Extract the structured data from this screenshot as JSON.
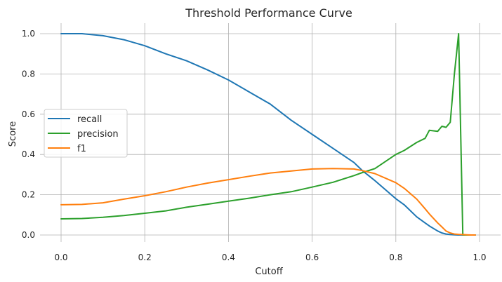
{
  "chart_data": {
    "type": "line",
    "title": "Threshold Performance Curve",
    "xlabel": "Cutoff",
    "ylabel": "Score",
    "xlim": [
      0.0,
      1.0
    ],
    "ylim": [
      0.0,
      1.0
    ],
    "x_ticks": [
      "0.0",
      "0.2",
      "0.4",
      "0.6",
      "0.8",
      "1.0"
    ],
    "y_ticks": [
      "0.0",
      "0.2",
      "0.4",
      "0.6",
      "0.8",
      "1.0"
    ],
    "grid": true,
    "legend_position": "center-left",
    "x": [
      0.0,
      0.05,
      0.1,
      0.15,
      0.2,
      0.25,
      0.3,
      0.35,
      0.4,
      0.45,
      0.5,
      0.55,
      0.6,
      0.65,
      0.7,
      0.72,
      0.75,
      0.8,
      0.82,
      0.85,
      0.87,
      0.88,
      0.9,
      0.91,
      0.92,
      0.93,
      0.94,
      0.95,
      0.96,
      0.97,
      0.98,
      0.99
    ],
    "series": [
      {
        "name": "recall",
        "color": "#1f77b4",
        "values": [
          1.0,
          1.0,
          0.99,
          0.97,
          0.94,
          0.9,
          0.865,
          0.82,
          0.77,
          0.71,
          0.65,
          0.57,
          0.5,
          0.43,
          0.36,
          0.32,
          0.27,
          0.18,
          0.15,
          0.09,
          0.06,
          0.045,
          0.02,
          0.01,
          0.005,
          0.002,
          0.001,
          0.0,
          0.0,
          0.0,
          0.0,
          0.0
        ]
      },
      {
        "name": "precision",
        "color": "#2ca02c",
        "values": [
          0.08,
          0.082,
          0.088,
          0.097,
          0.108,
          0.12,
          0.138,
          0.153,
          0.168,
          0.183,
          0.2,
          0.215,
          0.238,
          0.262,
          0.295,
          0.31,
          0.33,
          0.4,
          0.42,
          0.46,
          0.48,
          0.52,
          0.515,
          0.54,
          0.535,
          0.56,
          0.8,
          1.0,
          0.0,
          0.0,
          0.0,
          0.0
        ]
      },
      {
        "name": "f1",
        "color": "#ff7f0e",
        "values": [
          0.15,
          0.152,
          0.16,
          0.178,
          0.195,
          0.215,
          0.238,
          0.258,
          0.275,
          0.292,
          0.308,
          0.318,
          0.328,
          0.33,
          0.328,
          0.32,
          0.305,
          0.26,
          0.232,
          0.178,
          0.13,
          0.105,
          0.06,
          0.04,
          0.02,
          0.01,
          0.005,
          0.003,
          0.002,
          0.001,
          0.0,
          0.0
        ]
      }
    ]
  }
}
